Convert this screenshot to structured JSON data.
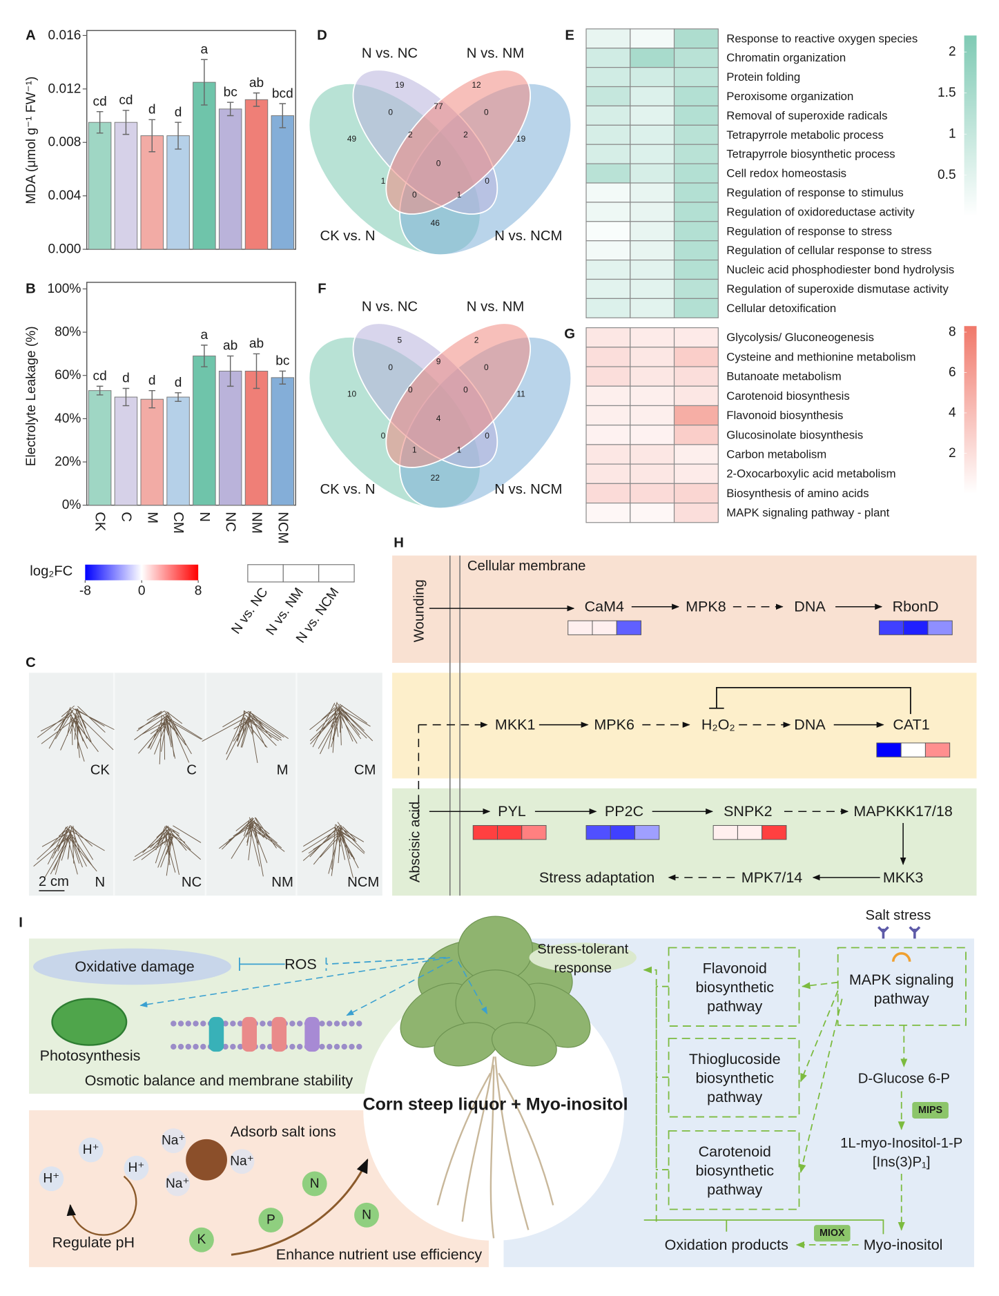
{
  "panel_labels": [
    "A",
    "B",
    "C",
    "D",
    "E",
    "F",
    "G",
    "H",
    "I"
  ],
  "chart_data": [
    {
      "type": "bar",
      "y_label": "MDA (μmol g⁻¹ FW⁻¹)",
      "categories": [
        null,
        null,
        null,
        null,
        null,
        null,
        null,
        null
      ],
      "values": [
        0.0095,
        0.0095,
        0.0085,
        0.0085,
        0.0125,
        0.0105,
        0.0112,
        0.01
      ],
      "errors": [
        0.0008,
        0.0009,
        0.0012,
        0.001,
        0.0017,
        0.0005,
        0.0005,
        0.0009
      ],
      "letters": [
        "cd",
        "cd",
        "d",
        "d",
        "a",
        "bc",
        "ab",
        "bcd"
      ],
      "colors": [
        "#9fd6c4",
        "#d6d1e8",
        "#f2aba5",
        "#b5d0e8",
        "#6fc4aa",
        "#bab3da",
        "#ef7f77",
        "#84aed8"
      ],
      "ylim": [
        0,
        0.016
      ],
      "yticks": [
        {
          "value": 0,
          "label": "0.000"
        },
        {
          "value": 0.004,
          "label": "0.004"
        },
        {
          "value": 0.008,
          "label": "0.008"
        },
        {
          "value": 0.012,
          "label": "0.012"
        },
        {
          "value": 0.016,
          "label": "0.016"
        }
      ]
    },
    {
      "type": "bar",
      "y_label": "Electrolyte Leakage (%)",
      "categories": [
        "CK",
        "C",
        "M",
        "CM",
        "N",
        "NC",
        "NM",
        "NCM"
      ],
      "values": [
        53,
        50,
        49,
        50,
        69,
        62,
        62,
        59
      ],
      "errors": [
        2,
        4,
        4,
        2,
        5,
        7,
        8,
        3
      ],
      "letters": [
        "cd",
        "d",
        "d",
        "d",
        "a",
        "ab",
        "ab",
        "bc"
      ],
      "colors": [
        "#9fd6c4",
        "#d6d1e8",
        "#f2aba5",
        "#b5d0e8",
        "#6fc4aa",
        "#bab3da",
        "#ef7f77",
        "#84aed8"
      ],
      "ylim": [
        0,
        100
      ],
      "yticks": [
        {
          "value": 0,
          "label": "0%"
        },
        {
          "value": 20,
          "label": "20%"
        },
        {
          "value": 40,
          "label": "40%"
        },
        {
          "value": 60,
          "label": "60%"
        },
        {
          "value": 80,
          "label": "80%"
        },
        {
          "value": 100,
          "label": "100%"
        }
      ]
    },
    {
      "type": "heatmap",
      "color": "#7fcab4",
      "clim": [
        0,
        2.2
      ],
      "cticks": [
        2,
        1.5,
        1,
        0.5
      ],
      "rows": [
        "Response to reactive oxygen species",
        "Chromatin organization",
        "Protein folding",
        "Peroxisome organization",
        "Removal of superoxide radicals",
        "Tetrapyrrole metabolic process",
        "Tetrapyrrole biosynthetic process",
        "Cell redox homeostasis",
        "Regulation of response to stimulus",
        "Regulation of oxidoreductase activity",
        "Regulation of response to stress",
        "Regulation of cellular response to stress",
        "Nucleic acid phosphodiester bond hydrolysis",
        "Regulation of superoxide dismutase activity",
        "Cellular detoxification"
      ],
      "values": [
        [
          0.4,
          0.2,
          1.4
        ],
        [
          0.8,
          1.5,
          1.2
        ],
        [
          0.8,
          0.8,
          1.1
        ],
        [
          1,
          0.6,
          1.3
        ],
        [
          0.7,
          0.5,
          1.3
        ],
        [
          0.7,
          0.6,
          1.2
        ],
        [
          0.7,
          0.6,
          1.2
        ],
        [
          1.2,
          0.7,
          1.3
        ],
        [
          0.2,
          0.4,
          1.3
        ],
        [
          0.3,
          0.4,
          1.3
        ],
        [
          0.1,
          0.4,
          1.3
        ],
        [
          0.2,
          0.4,
          1.3
        ],
        [
          0.5,
          0.5,
          1.3
        ],
        [
          0.5,
          0.5,
          1.2
        ],
        [
          0.6,
          0.5,
          1.3
        ]
      ]
    },
    {
      "type": "heatmap",
      "color": "#f0786a",
      "clim": [
        0,
        8.3
      ],
      "cticks": [
        8,
        6,
        4,
        2
      ],
      "rows": [
        "Glycolysis/ Gluconeogenesis",
        "Cysteine and methionine metabolism",
        "Butanoate metabolism",
        "Carotenoid biosynthesis",
        "Flavonoid biosynthesis",
        "Glucosinolate biosynthesis",
        "Carbon metabolism",
        "2-Oxocarboxylic acid metabolism",
        "Biosynthesis of amino acids",
        "MAPK signaling pathway - plant"
      ],
      "values": [
        [
          1.5,
          1.2,
          1.3
        ],
        [
          2,
          1.5,
          3
        ],
        [
          2,
          1.5,
          2
        ],
        [
          1,
          1,
          1.5
        ],
        [
          1,
          1,
          5
        ],
        [
          0.8,
          0.8,
          3
        ],
        [
          1.5,
          1.5,
          1
        ],
        [
          1.5,
          1.5,
          1.2
        ],
        [
          2.2,
          2.2,
          2.5
        ],
        [
          0.5,
          0.5,
          2
        ]
      ]
    }
  ],
  "colorbar_log2fc": {
    "title": "log₂FC",
    "lim": [
      -8,
      8
    ],
    "ticks": [
      -8,
      0,
      8
    ]
  },
  "heatmap_columns": [
    "N vs. NC",
    "N vs. NM",
    "N vs. NCM"
  ],
  "venn": [
    {
      "sets": [
        "N vs. NC",
        "N vs. NM",
        "CK vs. N",
        "N vs. NCM"
      ],
      "regions": [
        19,
        12,
        49,
        0,
        77,
        0,
        19,
        2,
        2,
        0,
        1,
        0,
        1,
        0,
        46
      ]
    },
    {
      "sets": [
        "N vs. NC",
        "N vs. NM",
        "CK vs. N",
        "N vs. NCM"
      ],
      "regions": [
        5,
        2,
        10,
        0,
        9,
        0,
        11,
        0,
        0,
        4,
        0,
        1,
        1,
        0,
        22
      ]
    }
  ],
  "photo": {
    "labels": [
      "CK",
      "C",
      "M",
      "CM",
      "N",
      "NC",
      "NM",
      "NCM"
    ],
    "scale": "2 cm"
  },
  "pathway": {
    "membrane": "Cellular membrane",
    "signals": [
      "Wounding",
      "Abscisic acid"
    ],
    "nodes": [
      "CaM4",
      "MPK8",
      "DNA",
      "RbonD",
      "MKK1",
      "MPK6",
      "H₂O₂",
      "DNA",
      "CAT1",
      "PYL",
      "PP2C",
      "SNPK2",
      "MAPKKK17/18",
      "MKK3",
      "MPK7/14",
      "Stress adaptation"
    ],
    "expression": [
      [
        0.5,
        0.5,
        -5
      ],
      [
        -6,
        -7,
        -3.5
      ],
      [
        -8,
        0,
        3.5
      ],
      [
        6,
        6,
        4
      ],
      [
        -5.5,
        -6,
        -3
      ],
      [
        0.5,
        0.5,
        6
      ]
    ]
  },
  "model": {
    "title": "Corn steep liquor + Myo-inositol",
    "oxidative_damage": "Oxidative damage",
    "ros": "ROS",
    "photosynthesis": "Photosynthesis",
    "membrane": "Osmotic balance and membrane stability",
    "adsorb": "Adsorb salt ions",
    "ph": "Regulate pH",
    "nutrient": "Enhance nutrient use efficiency",
    "ions": [
      "H⁺",
      "H⁺",
      "H⁺",
      "Na⁺",
      "Na⁺",
      "Na⁺",
      "N",
      "N",
      "P",
      "K"
    ],
    "response": [
      "Stress-tolerant",
      "response"
    ],
    "salt_stress": "Salt stress",
    "pathways": [
      [
        "Flavonoid",
        "biosynthetic",
        "pathway"
      ],
      [
        "Thioglucoside",
        "biosynthetic",
        "pathway"
      ],
      [
        "Carotenoid",
        "biosynthetic",
        "pathway"
      ]
    ],
    "mapk": [
      "MAPK signaling",
      "pathway"
    ],
    "metabolites": [
      "D-Glucose 6-P",
      "1L-myo-Inositol-1-P",
      "[Ins(3)P₁]",
      "Myo-inositol",
      "Oxidation products"
    ],
    "enzymes": [
      "MIPS",
      "MIOX"
    ]
  }
}
